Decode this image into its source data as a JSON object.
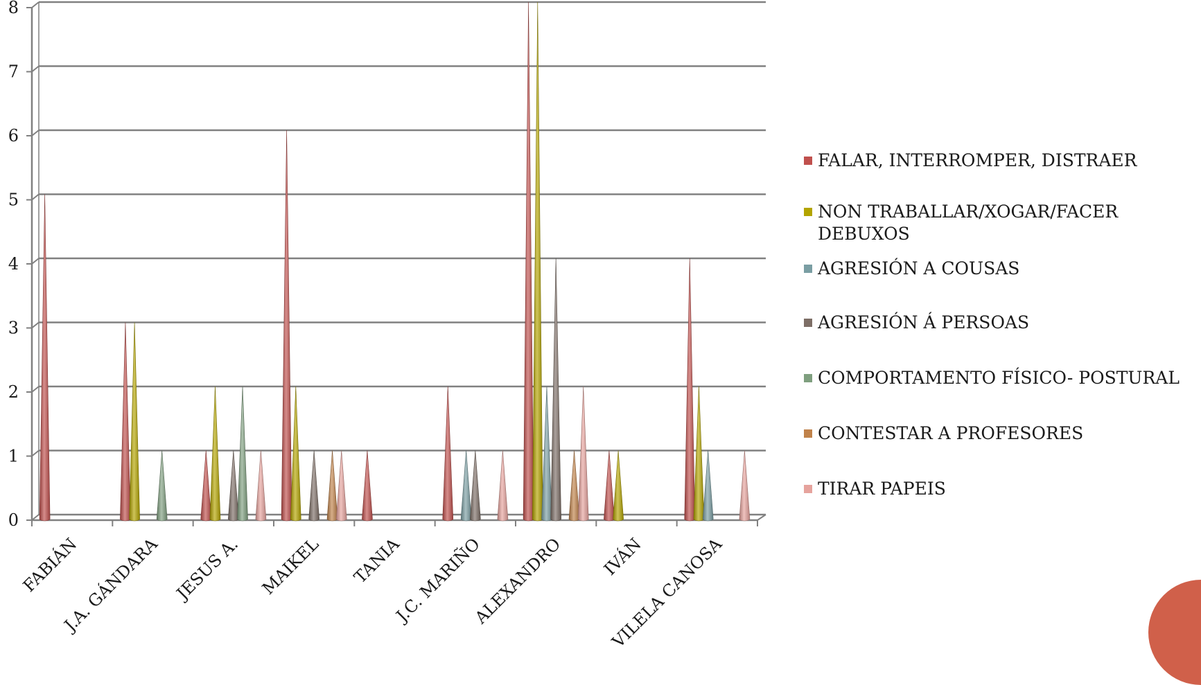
{
  "chart_data": {
    "type": "bar",
    "title": "",
    "xlabel": "",
    "ylabel": "",
    "ylim": [
      0,
      8
    ],
    "yticks": [
      "0",
      "1",
      "2",
      "3",
      "4",
      "5",
      "6",
      "7",
      "8"
    ],
    "grid": true,
    "legend_position": "right",
    "categories": [
      "FABIÁN",
      "J.A. GÁNDARA",
      "JESUS A.",
      "MAIKEL",
      "TANIA",
      "J.C. MARIÑO",
      "ALEXANDRO",
      "IVÁN",
      "VILELA CANOSA"
    ],
    "series": [
      {
        "name": "FALAR, INTERROMPER, DISTRAER",
        "color": "#c0504d",
        "values": [
          5,
          3,
          1,
          6,
          1,
          2,
          8,
          1,
          4
        ]
      },
      {
        "name": "NON TRABALLAR/XOGAR/FACER DEBUXOS",
        "color": "#b3a400",
        "values": [
          0,
          3,
          2,
          2,
          0,
          0,
          8,
          1,
          2
        ]
      },
      {
        "name": "AGRESIÓN A COUSAS",
        "color": "#7a9ea3",
        "values": [
          0,
          0,
          0,
          0,
          0,
          1,
          2,
          0,
          1
        ]
      },
      {
        "name": "AGRESIÓN Á PERSOAS",
        "color": "#7d6e66",
        "values": [
          0,
          0,
          1,
          1,
          0,
          1,
          4,
          0,
          0
        ]
      },
      {
        "name": "COMPORTAMENTO FÍSICO- POSTURAL",
        "color": "#7f9f7f",
        "values": [
          0,
          1,
          2,
          0,
          0,
          0,
          0,
          0,
          0
        ]
      },
      {
        "name": "CONTESTAR A PROFESORES",
        "color": "#c0824a",
        "values": [
          0,
          0,
          0,
          1,
          0,
          0,
          1,
          0,
          0
        ]
      },
      {
        "name": "TIRAR PAPEIS",
        "color": "#e6a39d",
        "values": [
          0,
          0,
          1,
          1,
          0,
          1,
          2,
          0,
          1
        ]
      }
    ]
  },
  "decoration": {
    "circle_color": "#d0604a"
  }
}
